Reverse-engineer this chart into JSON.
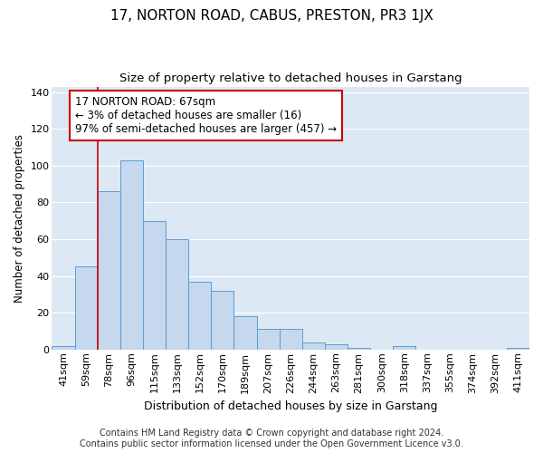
{
  "title": "17, NORTON ROAD, CABUS, PRESTON, PR3 1JX",
  "subtitle": "Size of property relative to detached houses in Garstang",
  "xlabel": "Distribution of detached houses by size in Garstang",
  "ylabel": "Number of detached properties",
  "bar_color": "#c5d8ed",
  "bar_edge_color": "#5b9bd5",
  "background_color": "#dce9f5",
  "grid_color": "#ffffff",
  "fig_color": "#ffffff",
  "categories": [
    "41sqm",
    "59sqm",
    "78sqm",
    "96sqm",
    "115sqm",
    "133sqm",
    "152sqm",
    "170sqm",
    "189sqm",
    "207sqm",
    "226sqm",
    "244sqm",
    "263sqm",
    "281sqm",
    "300sqm",
    "318sqm",
    "337sqm",
    "355sqm",
    "374sqm",
    "392sqm",
    "411sqm"
  ],
  "values": [
    2,
    45,
    86,
    103,
    70,
    60,
    37,
    32,
    18,
    11,
    11,
    4,
    3,
    1,
    0,
    2,
    0,
    0,
    0,
    0,
    1
  ],
  "ylim": [
    0,
    143
  ],
  "yticks": [
    0,
    20,
    40,
    60,
    80,
    100,
    120,
    140
  ],
  "annotation_text": "17 NORTON ROAD: 67sqm\n← 3% of detached houses are smaller (16)\n97% of semi-detached houses are larger (457) →",
  "annotation_box_color": "#ffffff",
  "annotation_box_edge": "#cc0000",
  "vline_x_index": 1,
  "vline_color": "#cc0000",
  "footer": "Contains HM Land Registry data © Crown copyright and database right 2024.\nContains public sector information licensed under the Open Government Licence v3.0.",
  "title_fontsize": 11,
  "subtitle_fontsize": 9.5,
  "xlabel_fontsize": 9,
  "ylabel_fontsize": 8.5,
  "tick_fontsize": 8,
  "annotation_fontsize": 8.5,
  "footer_fontsize": 7
}
